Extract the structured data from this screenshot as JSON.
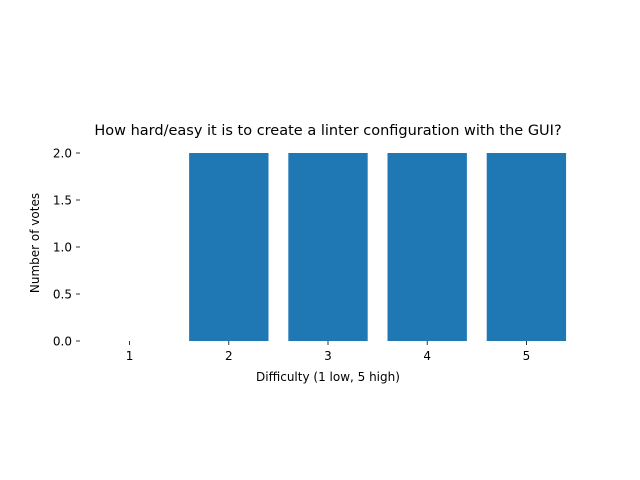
{
  "chart_data": {
    "type": "bar",
    "title": "How hard/easy it is to create a linter configuration with the GUI?",
    "xlabel": "Difficulty (1 low, 5 high)",
    "ylabel": "Number of votes",
    "categories": [
      "1",
      "2",
      "3",
      "4",
      "5"
    ],
    "values": [
      0,
      2,
      2,
      2,
      2
    ],
    "ylim": [
      0,
      2
    ],
    "yticks": [
      "0.0",
      "0.5",
      "1.0",
      "1.5",
      "2.0"
    ],
    "grid": false,
    "legend": "none",
    "bar_color": "#1f77b4"
  }
}
